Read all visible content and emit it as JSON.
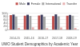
{
  "chart_data": {
    "type": "bar",
    "title": "UWO Student Demographics by Academic Year",
    "categories": [
      "2014-15",
      "2015-16",
      "2016-17",
      "2017-18",
      "2018-19"
    ],
    "series": [
      {
        "name": "Male",
        "color": "#c0504d",
        "values": [
          88,
          84,
          86,
          82,
          85
        ]
      },
      {
        "name": "Female",
        "color": "#3b3b5c",
        "values": [
          92,
          90,
          91,
          93,
          89
        ]
      },
      {
        "name": "International",
        "color": "#a5a5a5",
        "values": [
          80,
          83,
          78,
          81,
          84
        ]
      },
      {
        "name": "Transfer",
        "color": "#e6b0b0",
        "values": [
          12,
          15,
          10,
          14,
          11
        ]
      }
    ],
    "ylim": [
      0,
      100
    ],
    "yticks": [
      0,
      20,
      40,
      60,
      80,
      100
    ],
    "grid": true,
    "legend": "top"
  }
}
